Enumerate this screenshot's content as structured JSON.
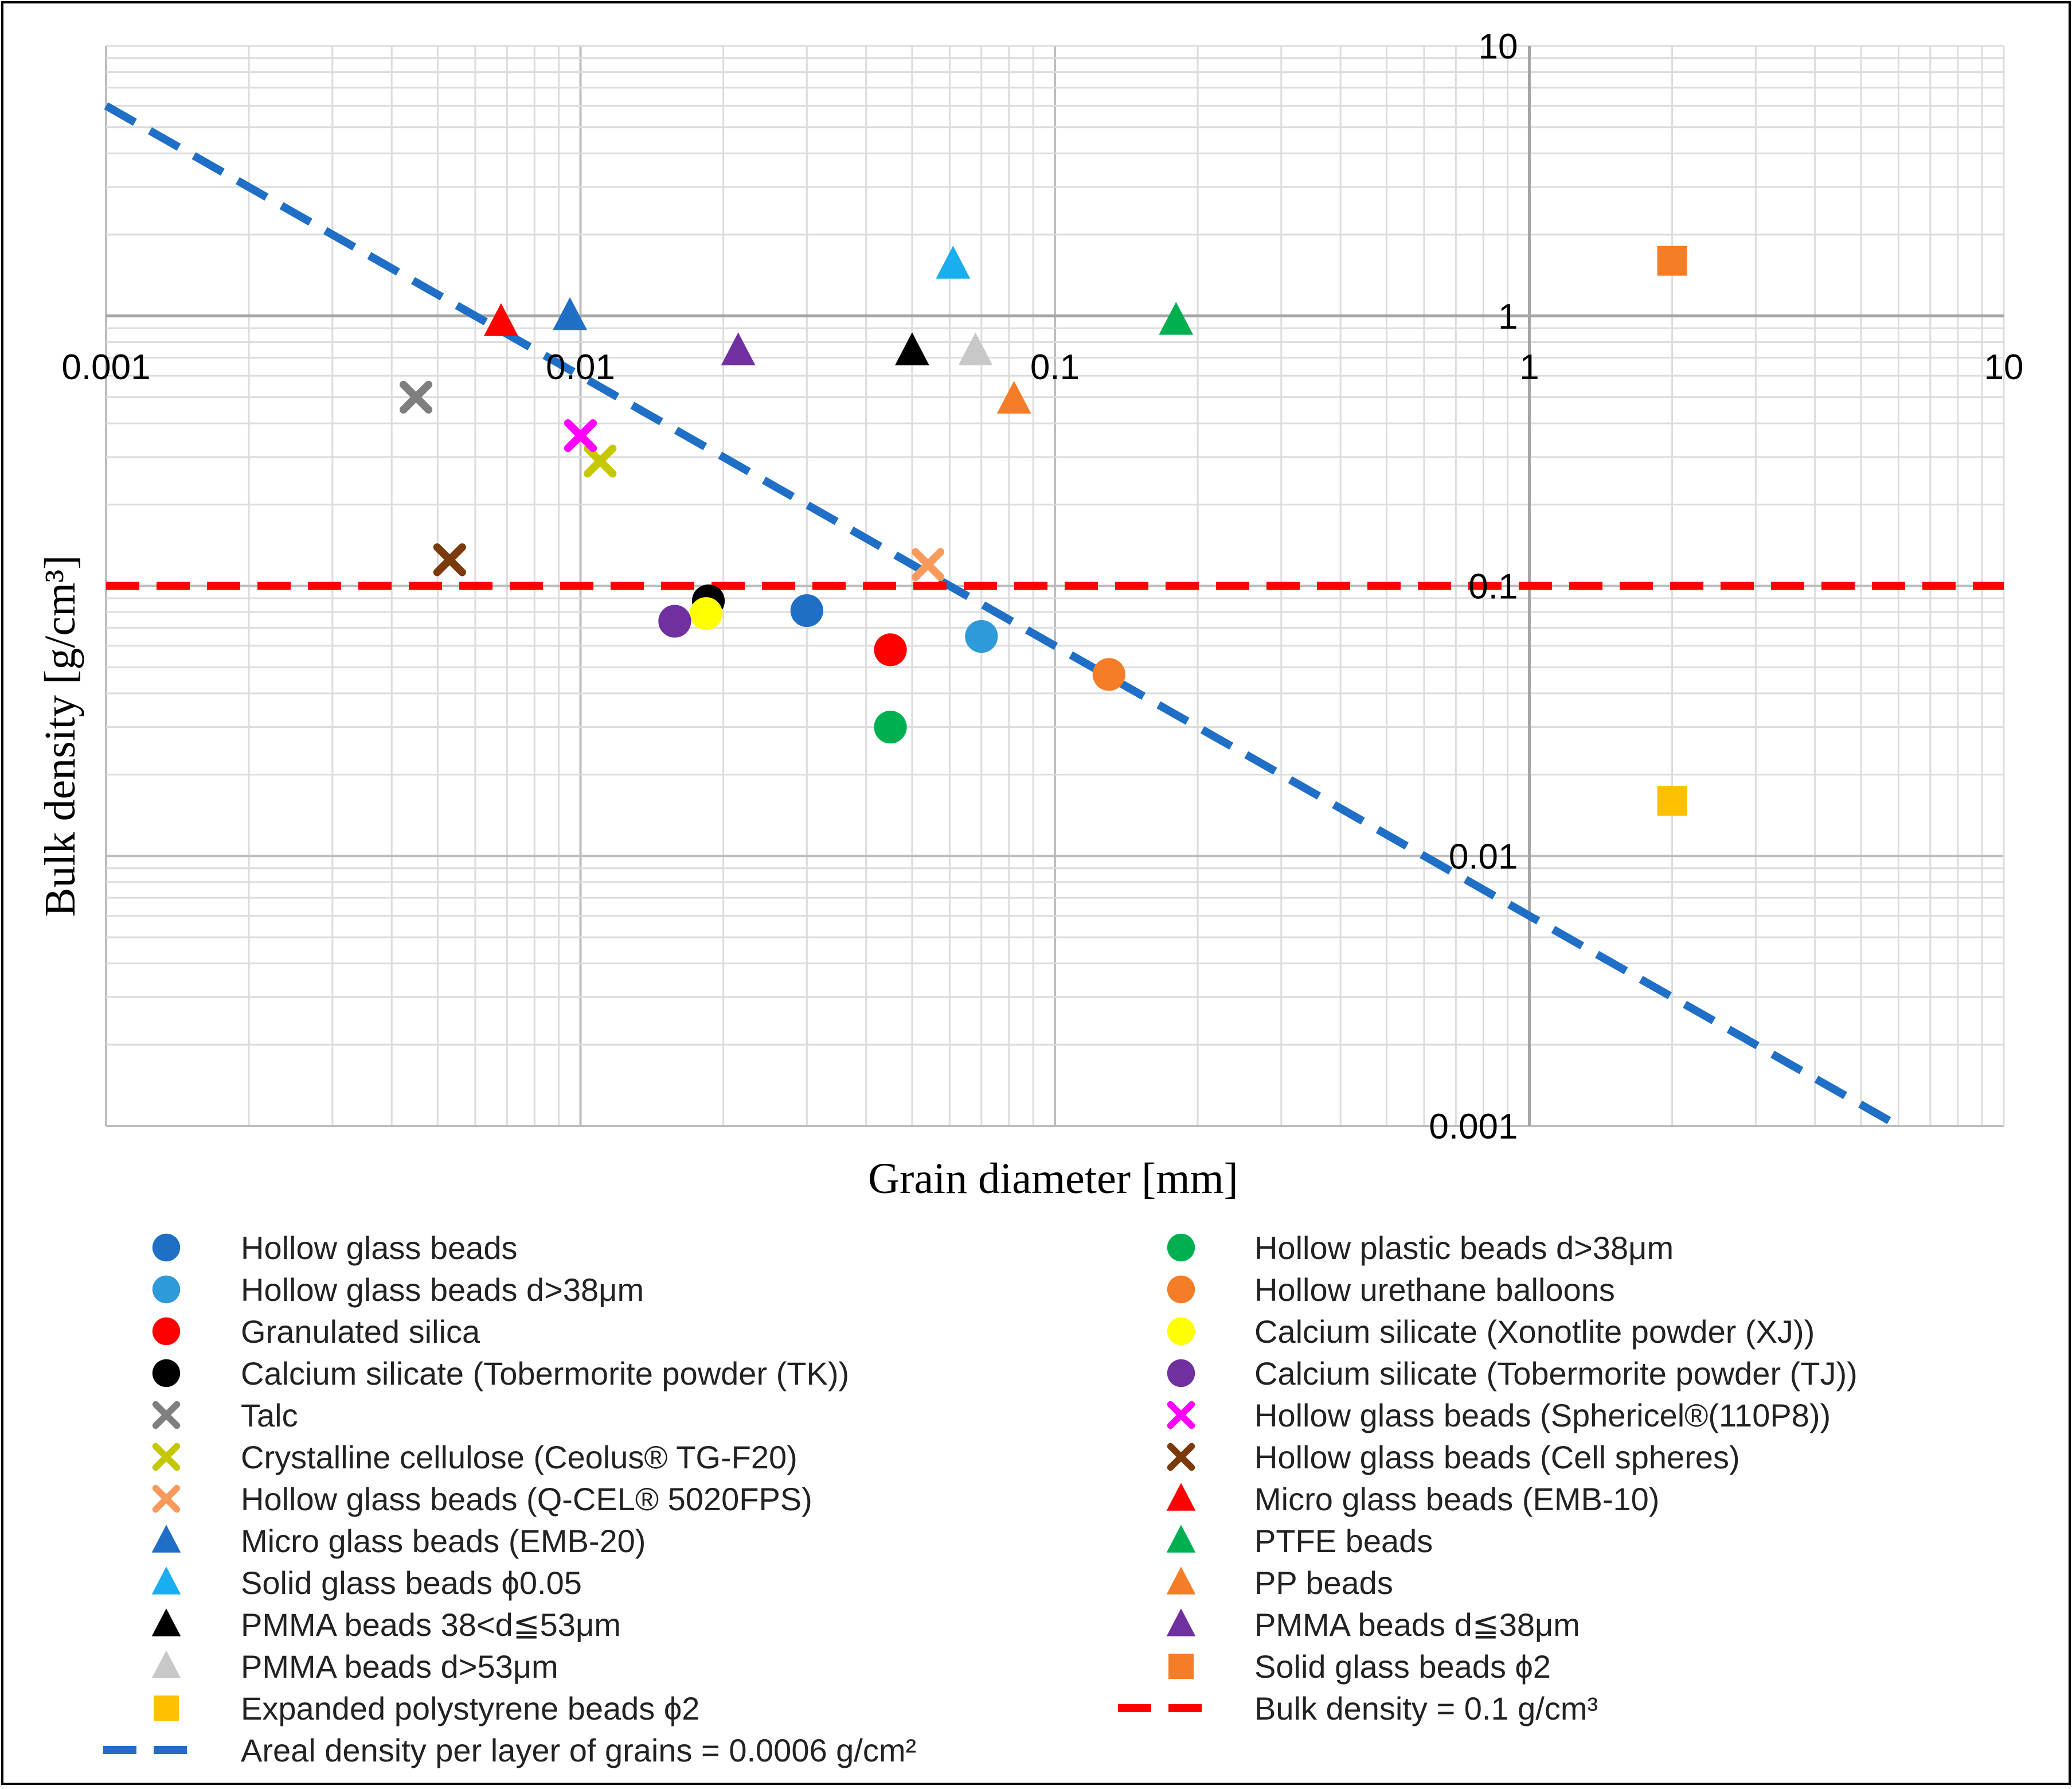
{
  "chart_data": {
    "type": "scatter",
    "title": "",
    "xlabel": "Grain diameter [mm]",
    "ylabel": "Bulk density [g/cm³]",
    "xscale": "log",
    "yscale": "log",
    "xlim": [
      0.001,
      10
    ],
    "ylim": [
      0.001,
      10
    ],
    "grid": true,
    "x_tick_labels": [
      "0.001",
      "0.01",
      "0.1",
      "1",
      "10"
    ],
    "y_tick_labels": [
      "10",
      "1",
      "0.1",
      "0.01",
      "0.001"
    ],
    "series": [
      {
        "name": "Hollow glass beads",
        "marker": "circle",
        "color": "#1f6fc6",
        "points": [
          [
            0.03,
            0.081
          ]
        ]
      },
      {
        "name": "Hollow glass beads d>38μm",
        "marker": "circle",
        "color": "#2e9ad8",
        "points": [
          [
            0.07,
            0.065
          ]
        ]
      },
      {
        "name": "Granulated silica",
        "marker": "circle",
        "color": "#ff0000",
        "points": [
          [
            0.045,
            0.058
          ]
        ]
      },
      {
        "name": "Calcium silicate (Tobermorite powder (TK))",
        "marker": "circle",
        "color": "#000000",
        "points": [
          [
            0.0186,
            0.088
          ]
        ]
      },
      {
        "name": "Talc",
        "marker": "x",
        "color": "#7f7f7f",
        "points": [
          [
            0.0045,
            0.5
          ]
        ]
      },
      {
        "name": "Crystalline cellulose (Ceolus® TG-F20)",
        "marker": "x",
        "color": "#c5c800",
        "points": [
          [
            0.011,
            0.29
          ]
        ]
      },
      {
        "name": "Hollow glass beads (Q-CEL® 5020FPS)",
        "marker": "x",
        "color": "#f79a5c",
        "points": [
          [
            0.054,
            0.12
          ]
        ]
      },
      {
        "name": "Micro glass beads (EMB-20)",
        "marker": "triangle",
        "color": "#1f6fc6",
        "points": [
          [
            0.0095,
            1.0
          ]
        ]
      },
      {
        "name": "Solid glass beads ϕ0.05",
        "marker": "triangle",
        "color": "#19aef0",
        "points": [
          [
            0.061,
            1.55
          ]
        ]
      },
      {
        "name": "PMMA beads 38<d≦53μm",
        "marker": "triangle",
        "color": "#000000",
        "points": [
          [
            0.05,
            0.74
          ]
        ]
      },
      {
        "name": "PMMA beads d>53μm",
        "marker": "triangle",
        "color": "#c8c8c8",
        "points": [
          [
            0.068,
            0.74
          ]
        ]
      },
      {
        "name": "Expanded polystyrene beads ϕ2",
        "marker": "square",
        "color": "#ffc000",
        "points": [
          [
            2.0,
            0.016
          ]
        ]
      },
      {
        "name": "Hollow plastic beads d>38μm",
        "marker": "circle",
        "color": "#00b050",
        "points": [
          [
            0.045,
            0.03
          ]
        ]
      },
      {
        "name": "Hollow urethane balloons",
        "marker": "circle",
        "color": "#f57d28",
        "points": [
          [
            0.13,
            0.047
          ]
        ]
      },
      {
        "name": "Calcium silicate (Xonotlite powder (XJ))",
        "marker": "circle",
        "color": "#ffff00",
        "points": [
          [
            0.0184,
            0.079
          ]
        ]
      },
      {
        "name": "Calcium silicate (Tobermorite powder (TJ))",
        "marker": "circle",
        "color": "#7030a0",
        "points": [
          [
            0.0158,
            0.074
          ]
        ]
      },
      {
        "name": "Hollow glass beads (Sphericel®(110P8))",
        "marker": "x",
        "color": "#ff00ff",
        "points": [
          [
            0.01,
            0.36
          ]
        ]
      },
      {
        "name": "Hollow glass beads (Cell spheres)",
        "marker": "x",
        "color": "#7a3a0a",
        "points": [
          [
            0.0053,
            0.125
          ]
        ]
      },
      {
        "name": "Micro glass beads (EMB-10)",
        "marker": "triangle",
        "color": "#ff0000",
        "points": [
          [
            0.0068,
            0.95
          ]
        ]
      },
      {
        "name": "PTFE beads",
        "marker": "triangle",
        "color": "#00b050",
        "points": [
          [
            0.18,
            0.96
          ]
        ]
      },
      {
        "name": "PP beads",
        "marker": "triangle",
        "color": "#f57d28",
        "points": [
          [
            0.082,
            0.49
          ]
        ]
      },
      {
        "name": "PMMA beads d≦38μm",
        "marker": "triangle",
        "color": "#7030a0",
        "points": [
          [
            0.0215,
            0.74
          ]
        ]
      },
      {
        "name": "Solid glass beads ϕ2",
        "marker": "square",
        "color": "#f57d28",
        "points": [
          [
            2.0,
            1.6
          ]
        ]
      }
    ],
    "lines": [
      {
        "name": "Areal density per layer of grains = 0.0006 g/cm²",
        "style": "dashed",
        "color": "#1f6fc6",
        "x": [
          0.001,
          6.0
        ],
        "y": [
          6.0,
          0.001
        ]
      },
      {
        "name": "Bulk density = 0.1 g/cm³",
        "style": "dashed",
        "color": "#ff0000",
        "x": [
          0.001,
          10
        ],
        "y": [
          0.1,
          0.1
        ]
      }
    ],
    "legend": {
      "placement": "bottom",
      "left_column": [
        "Hollow glass beads",
        "Hollow glass beads d>38μm",
        "Granulated silica",
        "Calcium silicate (Tobermorite powder (TK))",
        "Talc",
        "Crystalline cellulose (Ceolus® TG-F20)",
        "Hollow glass beads (Q-CEL® 5020FPS)",
        "Micro glass beads (EMB-20)",
        "Solid glass beads ϕ0.05",
        "PMMA beads 38<d≦53μm",
        "PMMA beads d>53μm",
        "Expanded polystyrene beads ϕ2",
        "Areal density per layer of grains = 0.0006 g/cm²"
      ],
      "right_column": [
        "Hollow plastic beads d>38μm",
        "Hollow urethane balloons",
        "Calcium silicate (Xonotlite powder (XJ))",
        "Calcium silicate (Tobermorite powder (TJ))",
        "Hollow glass beads (Sphericel®(110P8))",
        "Hollow glass beads (Cell spheres)",
        "Micro glass beads (EMB-10)",
        "PTFE beads",
        "PP beads",
        "PMMA beads d≦38μm",
        "Solid glass beads ϕ2",
        "Bulk density = 0.1 g/cm³"
      ]
    }
  }
}
